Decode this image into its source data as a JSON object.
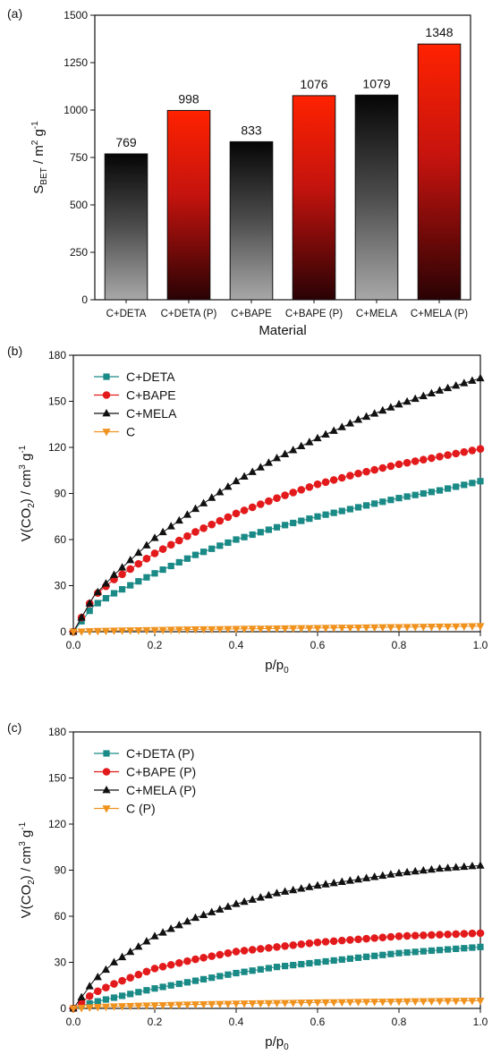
{
  "chart_data": [
    {
      "type": "bar",
      "panel_label": "(a)",
      "xlabel": "Material",
      "ylabel": {
        "base": "S",
        "sub": "BET",
        "rest1": " / m",
        "sup1": "2",
        "rest2": " g",
        "sup2": "-1"
      },
      "ylim": [
        0,
        1500
      ],
      "yticks": [
        "0",
        "250",
        "500",
        "750",
        "1000",
        "1250",
        "1500"
      ],
      "categories": [
        "C+DETA",
        "C+DETA (P)",
        "C+BAPE",
        "C+BAPE (P)",
        "C+MELA",
        "C+MELA (P)"
      ],
      "values": [
        769,
        998,
        833,
        1076,
        1079,
        1348
      ],
      "value_labels": [
        "769",
        "998",
        "833",
        "1076",
        "1079",
        "1348"
      ],
      "bar_styles": [
        "gray-gradient",
        "red-gradient",
        "gray-gradient",
        "red-gradient",
        "gray-gradient",
        "red-gradient"
      ]
    },
    {
      "type": "line",
      "panel_label": "(b)",
      "xlabel": {
        "base": "p/p",
        "sub": "0"
      },
      "ylabel": {
        "base": "V(CO",
        "sub": "2",
        "rest1": ") / cm",
        "sup1": "3",
        "rest2": " g",
        "sup2": "-1"
      },
      "xlim": [
        0,
        1.0
      ],
      "ylim": [
        0,
        180
      ],
      "xticks": [
        "0.0",
        "0.2",
        "0.4",
        "0.6",
        "0.8",
        "1.0"
      ],
      "yticks": [
        "0",
        "30",
        "60",
        "90",
        "120",
        "150",
        "180"
      ],
      "legend_position": "top-left",
      "series": [
        {
          "name": "C+DETA",
          "marker": "square",
          "color": "#1a8a87",
          "x": [
            0.0,
            0.05,
            0.1,
            0.2,
            0.3,
            0.4,
            0.5,
            0.6,
            0.7,
            0.8,
            0.9,
            1.0
          ],
          "y": [
            0,
            17,
            25,
            38,
            50,
            60,
            68,
            75,
            81,
            87,
            92,
            98
          ]
        },
        {
          "name": "C+BAPE",
          "marker": "circle",
          "color": "#e31a1c",
          "x": [
            0.0,
            0.05,
            0.1,
            0.2,
            0.3,
            0.4,
            0.5,
            0.6,
            0.7,
            0.8,
            0.9,
            1.0
          ],
          "y": [
            0,
            23,
            34,
            51,
            65,
            77,
            87,
            96,
            103,
            109,
            114,
            119
          ]
        },
        {
          "name": "C+MELA",
          "marker": "triangle-up",
          "color": "#111111",
          "x": [
            0.0,
            0.05,
            0.1,
            0.2,
            0.3,
            0.4,
            0.5,
            0.6,
            0.7,
            0.8,
            0.9,
            1.0
          ],
          "y": [
            0,
            23,
            37,
            61,
            80,
            98,
            113,
            126,
            138,
            148,
            157,
            165
          ]
        },
        {
          "name": "C",
          "marker": "triangle-down",
          "color": "#f0921e",
          "x": [
            0.0,
            0.05,
            0.1,
            0.2,
            0.3,
            0.4,
            0.5,
            0.6,
            0.7,
            0.8,
            0.9,
            1.0
          ],
          "y": [
            0,
            0.4,
            0.7,
            1.1,
            1.5,
            1.8,
            2.1,
            2.4,
            2.7,
            3.0,
            3.3,
            3.6
          ]
        }
      ]
    },
    {
      "type": "line",
      "panel_label": "(c)",
      "xlabel": {
        "base": "p/p",
        "sub": "0"
      },
      "ylabel": {
        "base": "V(CO",
        "sub": "2",
        "rest1": ") / cm",
        "sup1": "3",
        "rest2": " g",
        "sup2": "-1"
      },
      "xlim": [
        0,
        1.0
      ],
      "ylim": [
        0,
        180
      ],
      "xticks": [
        "0.0",
        "0.2",
        "0.4",
        "0.6",
        "0.8",
        "1.0"
      ],
      "yticks": [
        "0",
        "30",
        "60",
        "90",
        "120",
        "150",
        "180"
      ],
      "legend_position": "top-left",
      "series": [
        {
          "name": "C+DETA (P)",
          "marker": "square",
          "color": "#1a8a87",
          "x": [
            0.0,
            0.05,
            0.1,
            0.2,
            0.3,
            0.4,
            0.5,
            0.6,
            0.7,
            0.8,
            0.9,
            1.0
          ],
          "y": [
            0,
            4,
            7,
            13,
            18,
            23,
            27,
            30,
            33,
            36,
            38,
            40
          ]
        },
        {
          "name": "C+BAPE (P)",
          "marker": "circle",
          "color": "#e31a1c",
          "x": [
            0.0,
            0.05,
            0.1,
            0.2,
            0.3,
            0.4,
            0.5,
            0.6,
            0.7,
            0.8,
            0.9,
            1.0
          ],
          "y": [
            0,
            10,
            16,
            26,
            32,
            37,
            40,
            43,
            45,
            47,
            48,
            49
          ]
        },
        {
          "name": "C+MELA (P)",
          "marker": "triangle-up",
          "color": "#111111",
          "x": [
            0.0,
            0.05,
            0.1,
            0.2,
            0.3,
            0.4,
            0.5,
            0.6,
            0.7,
            0.8,
            0.9,
            1.0
          ],
          "y": [
            0,
            18,
            30,
            47,
            59,
            68,
            75,
            80,
            84,
            88,
            91,
            93
          ]
        },
        {
          "name": "C (P)",
          "marker": "triangle-down",
          "color": "#f0921e",
          "x": [
            0.0,
            0.05,
            0.1,
            0.2,
            0.3,
            0.4,
            0.5,
            0.6,
            0.7,
            0.8,
            0.9,
            1.0
          ],
          "y": [
            0,
            0.8,
            1.3,
            2.0,
            2.6,
            3.1,
            3.5,
            3.9,
            4.2,
            4.5,
            4.8,
            5.0
          ]
        }
      ]
    }
  ]
}
